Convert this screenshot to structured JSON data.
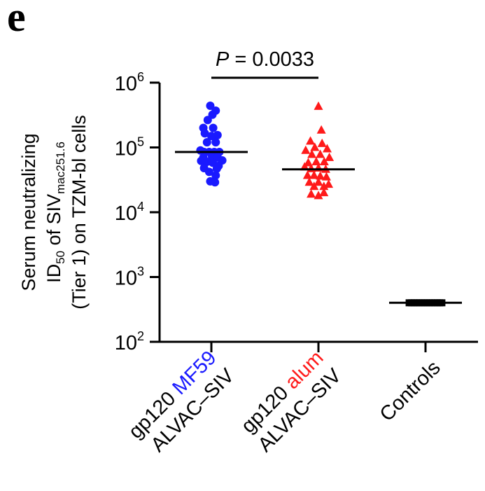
{
  "panel_label": "e",
  "chart_data": {
    "type": "scatter",
    "y_scale": "log10",
    "ylim": [
      100,
      1000000
    ],
    "ylabel": {
      "line1": "Serum neutralizing",
      "line2_pre": "ID",
      "line2_sub1": "50",
      "line2_mid": " of SIV",
      "line2_sub2": "mac251.6",
      "line3": "(Tier 1) on TZM-bl cells"
    },
    "yticks": [
      {
        "base": "10",
        "exp": "2",
        "value": 100
      },
      {
        "base": "10",
        "exp": "3",
        "value": 1000
      },
      {
        "base": "10",
        "exp": "4",
        "value": 10000
      },
      {
        "base": "10",
        "exp": "5",
        "value": 100000
      },
      {
        "base": "10",
        "exp": "6",
        "value": 1000000
      }
    ],
    "categories": [
      {
        "line1_a": "gp120 ",
        "line1_b": "MF59",
        "line2": "ALVAC–SIV",
        "accent": "#1a1aff"
      },
      {
        "line1_a": "gp120 ",
        "line1_b": "alum",
        "line2": "ALVAC–SIV",
        "accent": "#ff1a1a"
      },
      {
        "line1_a": "Controls",
        "line1_b": "",
        "line2": "",
        "accent": "#000000"
      }
    ],
    "series": [
      {
        "marker": "circle",
        "color": "#1a1aff",
        "median": 85000,
        "points": [
          [
            -0.03,
            440000
          ],
          [
            0.12,
            370000
          ],
          [
            0.03,
            320000
          ],
          [
            -0.1,
            265000
          ],
          [
            -0.22,
            200000
          ],
          [
            0.05,
            200000
          ],
          [
            -0.18,
            165000
          ],
          [
            0.17,
            155000
          ],
          [
            0.0,
            150000
          ],
          [
            -0.12,
            120000
          ],
          [
            0.12,
            120000
          ],
          [
            -0.3,
            90000
          ],
          [
            -0.2,
            85000
          ],
          [
            -0.06,
            85000
          ],
          [
            0.08,
            85000
          ],
          [
            0.22,
            85000
          ],
          [
            -0.22,
            70000
          ],
          [
            0.02,
            72000
          ],
          [
            0.17,
            70000
          ],
          [
            0.3,
            63000
          ],
          [
            -0.28,
            62000
          ],
          [
            -0.12,
            60000
          ],
          [
            0.04,
            58000
          ],
          [
            0.2,
            52000
          ],
          [
            -0.2,
            48000
          ],
          [
            0.15,
            47000
          ],
          [
            -0.06,
            42000
          ],
          [
            0.12,
            37000
          ],
          [
            -0.03,
            30000
          ],
          [
            0.1,
            29000
          ]
        ]
      },
      {
        "marker": "triangle",
        "color": "#ff1a1a",
        "median": 46000,
        "points": [
          [
            0.0,
            430000
          ],
          [
            0.08,
            185000
          ],
          [
            -0.22,
            125000
          ],
          [
            0.1,
            115000
          ],
          [
            -0.35,
            90000
          ],
          [
            -0.1,
            100000
          ],
          [
            0.24,
            95000
          ],
          [
            -0.18,
            78000
          ],
          [
            0.05,
            78000
          ],
          [
            0.3,
            70000
          ],
          [
            -0.28,
            58000
          ],
          [
            -0.06,
            60000
          ],
          [
            0.16,
            60000
          ],
          [
            -0.38,
            50000
          ],
          [
            -0.2,
            47000
          ],
          [
            0.0,
            48000
          ],
          [
            0.2,
            46000
          ],
          [
            -0.3,
            37000
          ],
          [
            -0.12,
            37000
          ],
          [
            0.05,
            36000
          ],
          [
            0.22,
            35000
          ],
          [
            -0.25,
            29000
          ],
          [
            0.0,
            29000
          ],
          [
            0.28,
            27000
          ],
          [
            -0.12,
            25000
          ],
          [
            0.15,
            25000
          ],
          [
            -0.2,
            19000
          ],
          [
            0.0,
            18000
          ],
          [
            0.15,
            20000
          ]
        ]
      },
      {
        "marker": "square",
        "color": "#000000",
        "median": 400,
        "points": [
          [
            -0.45,
            400
          ],
          [
            -0.38,
            400
          ],
          [
            -0.31,
            400
          ],
          [
            -0.24,
            400
          ],
          [
            -0.17,
            400
          ],
          [
            -0.1,
            400
          ],
          [
            -0.03,
            400
          ],
          [
            0.04,
            400
          ],
          [
            0.11,
            400
          ],
          [
            0.18,
            400
          ],
          [
            0.25,
            400
          ],
          [
            0.32,
            400
          ],
          [
            0.39,
            400
          ],
          [
            0.45,
            400
          ]
        ]
      }
    ],
    "annotation": {
      "p_label": "P",
      "p_value": " = 0.0033",
      "between": [
        0,
        1
      ]
    }
  }
}
